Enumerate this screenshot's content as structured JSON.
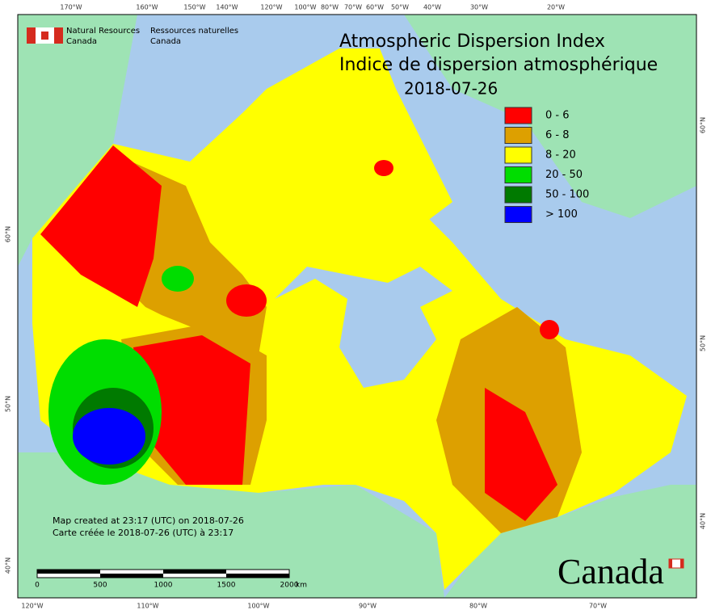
{
  "header": {
    "english": [
      "Natural Resources",
      "Canada"
    ],
    "french": [
      "Ressources naturelles",
      "Canada"
    ]
  },
  "title": [
    "Atmospheric Dispersion Index",
    "Indice de dispersion atmosphérique"
  ],
  "date": "2018-07-26",
  "legend": [
    {
      "label": "0 - 6",
      "color": "#ff0000"
    },
    {
      "label": "6 - 8",
      "color": "#dda000"
    },
    {
      "label": "8 - 20",
      "color": "#ffff00"
    },
    {
      "label": "20 - 50",
      "color": "#00dd00"
    },
    {
      "label": "50 - 100",
      "color": "#007a00"
    },
    {
      "label": "> 100",
      "color": "#0000ff"
    }
  ],
  "top_labels": [
    "170°W",
    "160°W",
    "150°W",
    "140°W",
    "120°W",
    "100°W",
    "80°W",
    "70°W",
    "60°W",
    "50°W",
    "40°W",
    "30°W",
    "20°W"
  ],
  "bottom_labels": [
    "120°W",
    "110°W",
    "100°W",
    "90°W",
    "80°W",
    "70°W"
  ],
  "left_labels": [
    "60°N",
    "50°N",
    "40°N"
  ],
  "right_labels": [
    "60°N",
    "50°N",
    "40°N"
  ],
  "notes": [
    "Map created at 23:17 (UTC) on 2018-07-26",
    "Carte créée le 2018-07-26 (UTC) à 23:17"
  ],
  "scale": {
    "labels": [
      "0",
      "500",
      "1000",
      "1500",
      "2000"
    ],
    "unit": "km"
  },
  "wordmark": "Canada"
}
